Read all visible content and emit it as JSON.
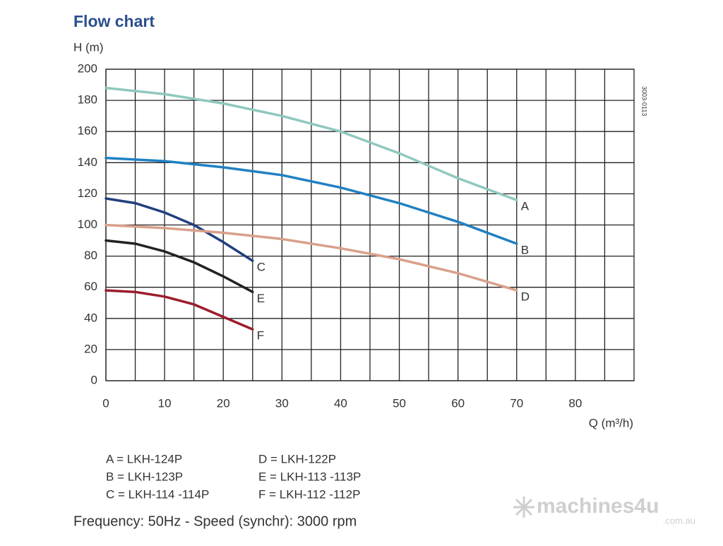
{
  "chart_data": {
    "type": "line",
    "title": "Flow chart",
    "y_label": "H (m)",
    "x_label": "Q (m³/h)",
    "xlim": [
      0,
      90
    ],
    "ylim": [
      0,
      200
    ],
    "xticks": [
      0,
      10,
      20,
      30,
      40,
      50,
      60,
      70,
      80
    ],
    "xminor": [
      5,
      15,
      25,
      35,
      45,
      55,
      65,
      75,
      85
    ],
    "yticks": [
      0,
      20,
      40,
      60,
      80,
      100,
      120,
      140,
      160,
      180,
      200
    ],
    "grid": true,
    "series": [
      {
        "name": "A",
        "color": "#8fc8bf",
        "x": [
          0,
          10,
          20,
          30,
          40,
          50,
          60,
          70
        ],
        "values": [
          188,
          184,
          178,
          170,
          160,
          146,
          130,
          116
        ]
      },
      {
        "name": "B",
        "color": "#2180c2",
        "x": [
          0,
          10,
          20,
          30,
          40,
          50,
          60,
          70
        ],
        "values": [
          143,
          141,
          137,
          132,
          124,
          114,
          102,
          88
        ]
      },
      {
        "name": "C",
        "color": "#233f80",
        "x": [
          0,
          5,
          10,
          15,
          20,
          25
        ],
        "values": [
          117,
          114,
          108,
          100,
          89,
          77
        ]
      },
      {
        "name": "D",
        "color": "#d9a08b",
        "x": [
          0,
          10,
          20,
          30,
          40,
          50,
          60,
          70
        ],
        "values": [
          100,
          98,
          95,
          91,
          85,
          78,
          69,
          58
        ]
      },
      {
        "name": "E",
        "color": "#222222",
        "x": [
          0,
          5,
          10,
          15,
          20,
          25
        ],
        "values": [
          90,
          88,
          83,
          76,
          67,
          57
        ]
      },
      {
        "name": "F",
        "color": "#9b1d2b",
        "x": [
          0,
          5,
          10,
          15,
          20,
          25
        ],
        "values": [
          58,
          57,
          54,
          49,
          41,
          33
        ]
      }
    ],
    "legend_entries": [
      "A = LKH-124P",
      "B = LKH-123P",
      "C = LKH-114 -114P",
      "D = LKH-122P",
      "E = LKH-113 -113P",
      "F = LKH-112 -112P"
    ],
    "footnote": "Frequency: 50Hz - Speed (synchr): 3000 rpm",
    "code": "3003-0113"
  },
  "watermark": {
    "brand": "machines4u",
    "domain": ".com.au"
  }
}
